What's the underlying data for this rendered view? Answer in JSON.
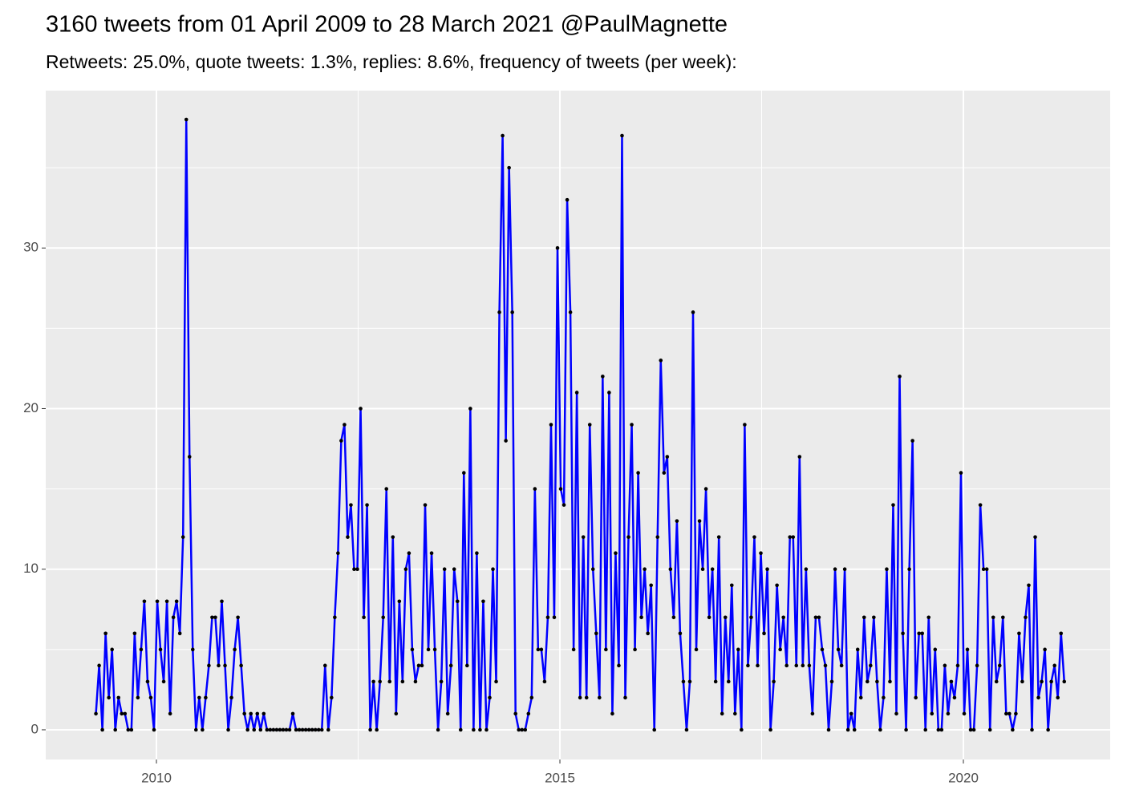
{
  "chart_data": {
    "type": "line",
    "title": "3160 tweets from 01 April 2009 to 28 March 2021 @PaulMagnette",
    "subtitle": "Retweets: 25.0%, quote tweets: 1.3%, replies: 8.6%, frequency of tweets (per week):",
    "color": "#0000ff",
    "marker_color": "#000000",
    "grid": true,
    "xlim": [
      2008.628,
      2021.819
    ],
    "xticks": [
      2010,
      2015,
      2020
    ],
    "ylim": [
      -1.85,
      39.8
    ],
    "yticks": [
      0,
      10,
      20,
      30
    ],
    "x": [
      2009.25,
      2009.29,
      2009.33,
      2009.37,
      2009.41,
      2009.45,
      2009.49,
      2009.53,
      2009.57,
      2009.61,
      2009.65,
      2009.69,
      2009.73,
      2009.77,
      2009.81,
      2009.85,
      2009.89,
      2009.93,
      2009.97,
      2010.01,
      2010.05,
      2010.09,
      2010.13,
      2010.17,
      2010.21,
      2010.25,
      2010.29,
      2010.33,
      2010.37,
      2010.41,
      2010.45,
      2010.49,
      2010.53,
      2010.57,
      2010.61,
      2010.65,
      2010.69,
      2010.73,
      2010.77,
      2010.81,
      2010.85,
      2010.89,
      2010.93,
      2010.97,
      2011.01,
      2011.05,
      2011.09,
      2011.13,
      2011.17,
      2011.21,
      2011.25,
      2011.29,
      2011.33,
      2011.37,
      2011.41,
      2011.45,
      2011.49,
      2011.53,
      2011.57,
      2011.61,
      2011.65,
      2011.69,
      2011.73,
      2011.77,
      2011.81,
      2011.85,
      2011.89,
      2011.93,
      2011.97,
      2012.01,
      2012.05,
      2012.09,
      2012.13,
      2012.17,
      2012.21,
      2012.25,
      2012.29,
      2012.33,
      2012.37,
      2012.41,
      2012.45,
      2012.49,
      2012.53,
      2012.57,
      2012.61,
      2012.65,
      2012.69,
      2012.73,
      2012.77,
      2012.81,
      2012.85,
      2012.89,
      2012.93,
      2012.97,
      2013.01,
      2013.05,
      2013.09,
      2013.13,
      2013.17,
      2013.21,
      2013.25,
      2013.29,
      2013.33,
      2013.37,
      2013.41,
      2013.45,
      2013.49,
      2013.53,
      2013.57,
      2013.61,
      2013.65,
      2013.69,
      2013.73,
      2013.77,
      2013.81,
      2013.85,
      2013.89,
      2013.93,
      2013.97,
      2014.01,
      2014.05,
      2014.09,
      2014.13,
      2014.17,
      2014.21,
      2014.25,
      2014.29,
      2014.33,
      2014.37,
      2014.41,
      2014.45,
      2014.49,
      2014.53,
      2014.57,
      2014.61,
      2014.65,
      2014.69,
      2014.73,
      2014.77,
      2014.81,
      2014.85,
      2014.89,
      2014.93,
      2014.97,
      2015.01,
      2015.05,
      2015.09,
      2015.13,
      2015.17,
      2015.21,
      2015.25,
      2015.29,
      2015.33,
      2015.37,
      2015.41,
      2015.45,
      2015.49,
      2015.53,
      2015.57,
      2015.61,
      2015.65,
      2015.69,
      2015.73,
      2015.77,
      2015.81,
      2015.85,
      2015.89,
      2015.93,
      2015.97,
      2016.01,
      2016.05,
      2016.09,
      2016.13,
      2016.17,
      2016.21,
      2016.25,
      2016.29,
      2016.33,
      2016.37,
      2016.41,
      2016.45,
      2016.49,
      2016.53,
      2016.57,
      2016.61,
      2016.65,
      2016.69,
      2016.73,
      2016.77,
      2016.81,
      2016.85,
      2016.89,
      2016.93,
      2016.97,
      2017.01,
      2017.05,
      2017.09,
      2017.13,
      2017.17,
      2017.21,
      2017.25,
      2017.29,
      2017.33,
      2017.37,
      2017.41,
      2017.45,
      2017.49,
      2017.53,
      2017.57,
      2017.61,
      2017.65,
      2017.69,
      2017.73,
      2017.77,
      2017.81,
      2017.85,
      2017.89,
      2017.93,
      2017.97,
      2018.01,
      2018.05,
      2018.09,
      2018.13,
      2018.17,
      2018.21,
      2018.25,
      2018.29,
      2018.33,
      2018.37,
      2018.41,
      2018.45,
      2018.49,
      2018.53,
      2018.57,
      2018.61,
      2018.65,
      2018.69,
      2018.73,
      2018.77,
      2018.81,
      2018.85,
      2018.89,
      2018.93,
      2018.97,
      2019.01,
      2019.05,
      2019.09,
      2019.13,
      2019.17,
      2019.21,
      2019.25,
      2019.29,
      2019.33,
      2019.37,
      2019.41,
      2019.45,
      2019.49,
      2019.53,
      2019.57,
      2019.61,
      2019.65,
      2019.69,
      2019.73,
      2019.77,
      2019.81,
      2019.85,
      2019.89,
      2019.93,
      2019.97,
      2020.01,
      2020.05,
      2020.09,
      2020.13,
      2020.17,
      2020.21,
      2020.25,
      2020.29,
      2020.33,
      2020.37,
      2020.41,
      2020.45,
      2020.49,
      2020.53,
      2020.57,
      2020.61,
      2020.65,
      2020.69,
      2020.73,
      2020.77,
      2020.81,
      2020.85,
      2020.89,
      2020.93,
      2020.97,
      2021.01,
      2021.05,
      2021.09,
      2021.13,
      2021.17,
      2021.21,
      2021.25
    ],
    "values": [
      1,
      4,
      0,
      6,
      2,
      5,
      0,
      2,
      1,
      1,
      0,
      0,
      6,
      2,
      5,
      8,
      3,
      2,
      0,
      8,
      5,
      3,
      8,
      1,
      7,
      8,
      6,
      12,
      38,
      17,
      5,
      0,
      2,
      0,
      2,
      4,
      7,
      7,
      4,
      8,
      4,
      0,
      2,
      5,
      7,
      4,
      1,
      0,
      1,
      0,
      1,
      0,
      1,
      0,
      0,
      0,
      0,
      0,
      0,
      0,
      0,
      1,
      0,
      0,
      0,
      0,
      0,
      0,
      0,
      0,
      0,
      4,
      0,
      2,
      7,
      11,
      18,
      19,
      12,
      14,
      10,
      10,
      20,
      7,
      14,
      0,
      3,
      0,
      3,
      7,
      15,
      3,
      12,
      1,
      8,
      3,
      10,
      11,
      5,
      3,
      4,
      4,
      14,
      5,
      11,
      5,
      0,
      3,
      10,
      1,
      4,
      10,
      8,
      0,
      16,
      4,
      20,
      0,
      11,
      0,
      8,
      0,
      2,
      10,
      3,
      26,
      37,
      18,
      35,
      26,
      1,
      0,
      0,
      0,
      1,
      2,
      15,
      5,
      5,
      3,
      7,
      19,
      7,
      30,
      15,
      14,
      33,
      26,
      5,
      21,
      2,
      12,
      2,
      19,
      10,
      6,
      2,
      22,
      5,
      21,
      1,
      11,
      4,
      37,
      2,
      12,
      19,
      5,
      16,
      7,
      10,
      6,
      9,
      0,
      12,
      23,
      16,
      17,
      10,
      7,
      13,
      6,
      3,
      0,
      3,
      26,
      5,
      13,
      10,
      15,
      7,
      10,
      3,
      12,
      1,
      7,
      3,
      9,
      1,
      5,
      0,
      19,
      4,
      7,
      12,
      4,
      11,
      6,
      10,
      0,
      3,
      9,
      5,
      7,
      4,
      12,
      12,
      4,
      17,
      4,
      10,
      4,
      1,
      7,
      7,
      5,
      4,
      0,
      3,
      10,
      5,
      4,
      10,
      0,
      1,
      0,
      5,
      2,
      7,
      3,
      4,
      7,
      3,
      0,
      2,
      10,
      3,
      14,
      1,
      22,
      6,
      0,
      10,
      18,
      2,
      6,
      6,
      0,
      7,
      1,
      5,
      0,
      0,
      4,
      1,
      3,
      2,
      4,
      16,
      1,
      5,
      0,
      0,
      4,
      14,
      10,
      10,
      0,
      7,
      3,
      4,
      7,
      1,
      1,
      0,
      1,
      6,
      3,
      7,
      9,
      0,
      12,
      2,
      3,
      5,
      0,
      3,
      4,
      2,
      6,
      3
    ]
  }
}
